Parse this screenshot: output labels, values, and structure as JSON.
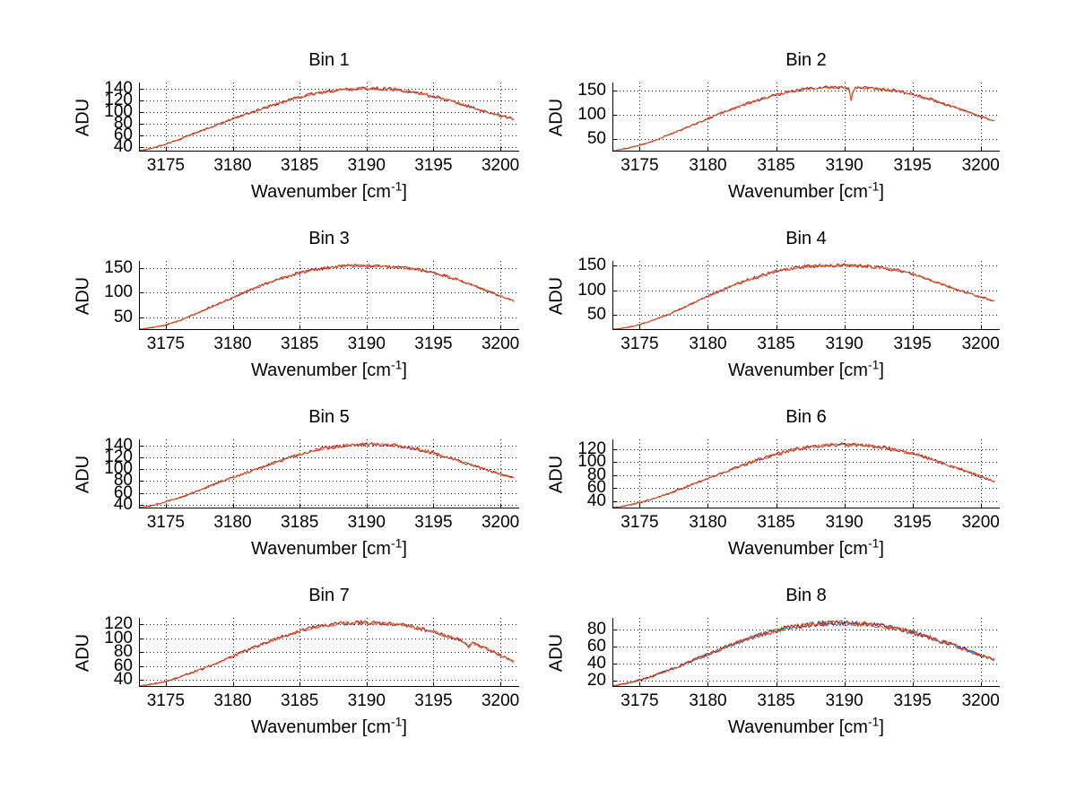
{
  "figure": {
    "background": "#ffffff",
    "text_color": "#000000",
    "axis_color": "#000000",
    "grid": true,
    "grid_style": "dotted",
    "xlabel": {
      "prefix": "Wavenumber [cm",
      "sup": "-1",
      "suffix": "]"
    },
    "ylabel": "ADU",
    "xticks": [
      3175,
      3180,
      3185,
      3190,
      3195,
      3200
    ],
    "xlim": [
      3173,
      3201.4
    ],
    "series_palette": {
      "blue": "#0072bd",
      "orange": "#d95319",
      "darkred": "#a2142f"
    }
  },
  "chart_data": [
    {
      "type": "line",
      "title": "Bin 1",
      "ylabel": "ADU",
      "yticks": [
        40,
        60,
        80,
        100,
        120,
        140
      ],
      "ylim": [
        32,
        151
      ],
      "x": [
        3173,
        3174,
        3175,
        3176,
        3177,
        3178,
        3179,
        3180,
        3181,
        3182,
        3183,
        3184,
        3185,
        3186,
        3187,
        3188,
        3189,
        3190,
        3191,
        3192,
        3193,
        3194,
        3195,
        3196,
        3197,
        3198,
        3199,
        3200,
        3201
      ],
      "y": [
        33,
        38,
        45,
        53,
        62,
        71,
        80,
        88,
        96,
        104,
        112,
        119,
        126,
        131,
        135,
        138,
        140,
        141,
        140,
        139,
        136,
        132,
        127,
        121,
        114,
        107,
        100,
        94,
        88
      ],
      "series": [
        {
          "name": "spectrum-darkred",
          "color": "#a2142f",
          "noise": 3.2,
          "seed": 11
        },
        {
          "name": "spectrum-orange",
          "color": "#d95319",
          "noise": 2.6,
          "seed": 7
        }
      ]
    },
    {
      "type": "line",
      "title": "Bin 2",
      "ylabel": "ADU",
      "yticks": [
        50,
        100,
        150
      ],
      "ylim": [
        24,
        166
      ],
      "x": [
        3173,
        3174,
        3175,
        3176,
        3177,
        3178,
        3179,
        3180,
        3181,
        3182,
        3183,
        3184,
        3185,
        3186,
        3187,
        3188,
        3189,
        3190,
        3190.35,
        3190.5,
        3190.65,
        3191,
        3192,
        3193,
        3194,
        3195,
        3196,
        3197,
        3198,
        3199,
        3200,
        3201
      ],
      "y": [
        25,
        30,
        37,
        46,
        57,
        68,
        80,
        92,
        103,
        114,
        124,
        133,
        141,
        147,
        152,
        155,
        156,
        156,
        153,
        127,
        152,
        155,
        154,
        152,
        148,
        142,
        134,
        125,
        116,
        106,
        96,
        87
      ],
      "series": [
        {
          "name": "spectrum-darkred",
          "color": "#a2142f",
          "noise": 3.4,
          "seed": 21
        },
        {
          "name": "spectrum-orange",
          "color": "#d95319",
          "noise": 2.8,
          "seed": 5
        }
      ]
    },
    {
      "type": "line",
      "title": "Bin 3",
      "ylabel": "ADU",
      "yticks": [
        50,
        100,
        150
      ],
      "ylim": [
        24,
        164
      ],
      "x": [
        3173,
        3174,
        3175,
        3176,
        3177,
        3178,
        3179,
        3180,
        3181,
        3182,
        3183,
        3184,
        3185,
        3186,
        3187,
        3188,
        3189,
        3190,
        3191,
        3192,
        3193,
        3194,
        3195,
        3196,
        3197,
        3198,
        3199,
        3200,
        3201
      ],
      "y": [
        25,
        29,
        34,
        43,
        54,
        66,
        78,
        90,
        102,
        113,
        123,
        132,
        140,
        146,
        150,
        153,
        154,
        154,
        153,
        152,
        150,
        146,
        140,
        133,
        124,
        114,
        104,
        93,
        82
      ],
      "series": [
        {
          "name": "spectrum-darkred",
          "color": "#a2142f",
          "noise": 3.4,
          "seed": 31
        },
        {
          "name": "spectrum-orange",
          "color": "#d95319",
          "noise": 2.8,
          "seed": 13
        }
      ]
    },
    {
      "type": "line",
      "title": "Bin 4",
      "ylabel": "ADU",
      "yticks": [
        50,
        100,
        150
      ],
      "ylim": [
        19,
        160
      ],
      "x": [
        3173,
        3174,
        3175,
        3176,
        3177,
        3178,
        3179,
        3180,
        3181,
        3182,
        3183,
        3184,
        3185,
        3186,
        3187,
        3188,
        3189,
        3190,
        3191,
        3192,
        3193,
        3194,
        3195,
        3196,
        3197,
        3198,
        3199,
        3200,
        3201
      ],
      "y": [
        20,
        24,
        30,
        39,
        50,
        62,
        75,
        88,
        100,
        112,
        122,
        131,
        139,
        144,
        148,
        150,
        151,
        151,
        150,
        148,
        145,
        140,
        133,
        124,
        114,
        104,
        95,
        86,
        78
      ],
      "series": [
        {
          "name": "spectrum-darkred",
          "color": "#a2142f",
          "noise": 3.4,
          "seed": 41
        },
        {
          "name": "spectrum-orange",
          "color": "#d95319",
          "noise": 2.8,
          "seed": 17
        }
      ]
    },
    {
      "type": "line",
      "title": "Bin 5",
      "ylabel": "ADU",
      "yticks": [
        40,
        60,
        80,
        100,
        120,
        140
      ],
      "ylim": [
        34,
        150
      ],
      "x": [
        3173,
        3174,
        3175,
        3176,
        3177,
        3178,
        3179,
        3180,
        3181,
        3182,
        3183,
        3184,
        3185,
        3186,
        3187,
        3188,
        3189,
        3190,
        3191,
        3192,
        3193,
        3194,
        3195,
        3196,
        3197,
        3198,
        3199,
        3200,
        3201
      ],
      "y": [
        35,
        39,
        45,
        52,
        60,
        69,
        78,
        86,
        94,
        102,
        110,
        118,
        125,
        131,
        136,
        139,
        141,
        142,
        141,
        140,
        137,
        133,
        127,
        120,
        113,
        106,
        99,
        92,
        85
      ],
      "series": [
        {
          "name": "spectrum-darkred",
          "color": "#a2142f",
          "noise": 3.2,
          "seed": 51
        },
        {
          "name": "spectrum-orange",
          "color": "#d95319",
          "noise": 2.6,
          "seed": 19
        }
      ]
    },
    {
      "type": "line",
      "title": "Bin 6",
      "ylabel": "ADU",
      "yticks": [
        40,
        60,
        80,
        100,
        120
      ],
      "ylim": [
        29,
        135
      ],
      "x": [
        3173,
        3174,
        3175,
        3176,
        3177,
        3178,
        3179,
        3180,
        3181,
        3182,
        3183,
        3184,
        3185,
        3186,
        3187,
        3188,
        3189,
        3190,
        3191,
        3192,
        3193,
        3194,
        3195,
        3196,
        3197,
        3198,
        3199,
        3200,
        3201
      ],
      "y": [
        30,
        33,
        38,
        44,
        51,
        59,
        67,
        75,
        83,
        91,
        99,
        106,
        112,
        118,
        122,
        125,
        127,
        127,
        126,
        125,
        122,
        118,
        113,
        107,
        100,
        93,
        86,
        78,
        70
      ],
      "series": [
        {
          "name": "spectrum-darkred",
          "color": "#a2142f",
          "noise": 3.0,
          "seed": 61
        },
        {
          "name": "spectrum-orange",
          "color": "#d95319",
          "noise": 2.5,
          "seed": 23
        }
      ]
    },
    {
      "type": "line",
      "title": "Bin 7",
      "ylabel": "ADU",
      "yticks": [
        40,
        60,
        80,
        100,
        120
      ],
      "ylim": [
        30,
        129
      ],
      "x": [
        3173,
        3174,
        3175,
        3176,
        3177,
        3178,
        3179,
        3180,
        3181,
        3182,
        3183,
        3184,
        3185,
        3186,
        3187,
        3188,
        3189,
        3190,
        3191,
        3192,
        3193,
        3194,
        3195,
        3196,
        3197,
        3197.3,
        3197.6,
        3197.9,
        3198,
        3199,
        3200,
        3201
      ],
      "y": [
        31,
        34,
        38,
        44,
        51,
        58,
        66,
        74,
        82,
        90,
        97,
        104,
        110,
        115,
        118,
        121,
        122,
        122,
        121,
        120,
        118,
        114,
        109,
        103,
        97,
        95,
        87,
        93,
        92,
        85,
        75,
        66
      ],
      "series": [
        {
          "name": "spectrum-darkred",
          "color": "#a2142f",
          "noise": 3.0,
          "seed": 71
        },
        {
          "name": "spectrum-orange",
          "color": "#d95319",
          "noise": 2.5,
          "seed": 29
        }
      ]
    },
    {
      "type": "line",
      "title": "Bin 8",
      "ylabel": "ADU",
      "yticks": [
        20,
        40,
        60,
        80
      ],
      "ylim": [
        13,
        94
      ],
      "x": [
        3173,
        3174,
        3175,
        3176,
        3177,
        3178,
        3179,
        3180,
        3181,
        3182,
        3183,
        3184,
        3185,
        3186,
        3187,
        3188,
        3189,
        3190,
        3191,
        3192,
        3193,
        3194,
        3195,
        3196,
        3197,
        3198,
        3199,
        3200,
        3201
      ],
      "y": [
        14,
        17,
        21,
        26,
        32,
        38,
        45,
        51,
        58,
        64,
        70,
        75,
        79,
        83,
        85,
        87,
        88,
        88,
        87,
        86,
        84,
        81,
        77,
        72,
        67,
        62,
        56,
        50,
        45
      ],
      "series": [
        {
          "name": "spectrum-blue",
          "color": "#0072bd",
          "noise": 3.0,
          "seed": 3
        },
        {
          "name": "spectrum-darkred",
          "color": "#a2142f",
          "noise": 3.0,
          "seed": 81
        },
        {
          "name": "spectrum-orange",
          "color": "#d95319",
          "noise": 2.6,
          "seed": 37
        }
      ]
    }
  ]
}
